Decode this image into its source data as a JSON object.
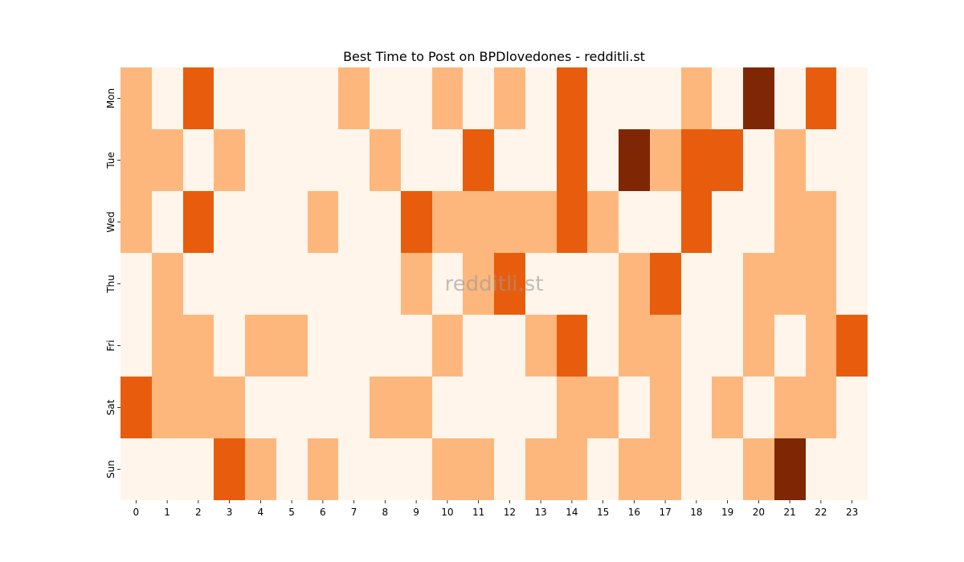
{
  "chart_data": {
    "type": "heatmap",
    "title": "Best Time to Post on BPDlovedones - redditli.st",
    "watermark": "redditli.st",
    "xlabel": "",
    "ylabel": "",
    "x_categories": [
      "0",
      "1",
      "2",
      "3",
      "4",
      "5",
      "6",
      "7",
      "8",
      "9",
      "10",
      "11",
      "12",
      "13",
      "14",
      "15",
      "16",
      "17",
      "18",
      "19",
      "20",
      "21",
      "22",
      "23"
    ],
    "y_categories": [
      "Mon",
      "Tue",
      "Wed",
      "Thu",
      "Fri",
      "Sat",
      "Sun"
    ],
    "values": [
      [
        1,
        0,
        2,
        0,
        0,
        0,
        0,
        1,
        0,
        0,
        1,
        0,
        1,
        0,
        2,
        0,
        0,
        0,
        1,
        0,
        3,
        0,
        2,
        0
      ],
      [
        1,
        1,
        0,
        1,
        0,
        0,
        0,
        0,
        1,
        0,
        0,
        2,
        0,
        0,
        2,
        0,
        3,
        1,
        2,
        2,
        0,
        1,
        0,
        0
      ],
      [
        1,
        0,
        2,
        0,
        0,
        0,
        1,
        0,
        0,
        2,
        1,
        1,
        1,
        1,
        2,
        1,
        0,
        0,
        2,
        0,
        0,
        1,
        1,
        0
      ],
      [
        0,
        1,
        0,
        0,
        0,
        0,
        0,
        0,
        0,
        1,
        0,
        1,
        2,
        0,
        0,
        0,
        1,
        2,
        0,
        0,
        1,
        1,
        1,
        0
      ],
      [
        0,
        1,
        1,
        0,
        1,
        1,
        0,
        0,
        0,
        0,
        1,
        0,
        0,
        1,
        2,
        0,
        1,
        1,
        0,
        0,
        1,
        0,
        1,
        2
      ],
      [
        2,
        1,
        1,
        1,
        0,
        0,
        0,
        0,
        1,
        1,
        0,
        0,
        0,
        0,
        1,
        1,
        0,
        1,
        0,
        1,
        0,
        1,
        1,
        0
      ],
      [
        0,
        0,
        0,
        2,
        1,
        0,
        1,
        0,
        0,
        0,
        1,
        1,
        0,
        1,
        1,
        0,
        1,
        1,
        0,
        0,
        1,
        3,
        0,
        0
      ]
    ],
    "colorscale": [
      "#fff5eb",
      "#fdb77c",
      "#e85d0d",
      "#7f2704"
    ],
    "legend": "none",
    "grid": false
  }
}
